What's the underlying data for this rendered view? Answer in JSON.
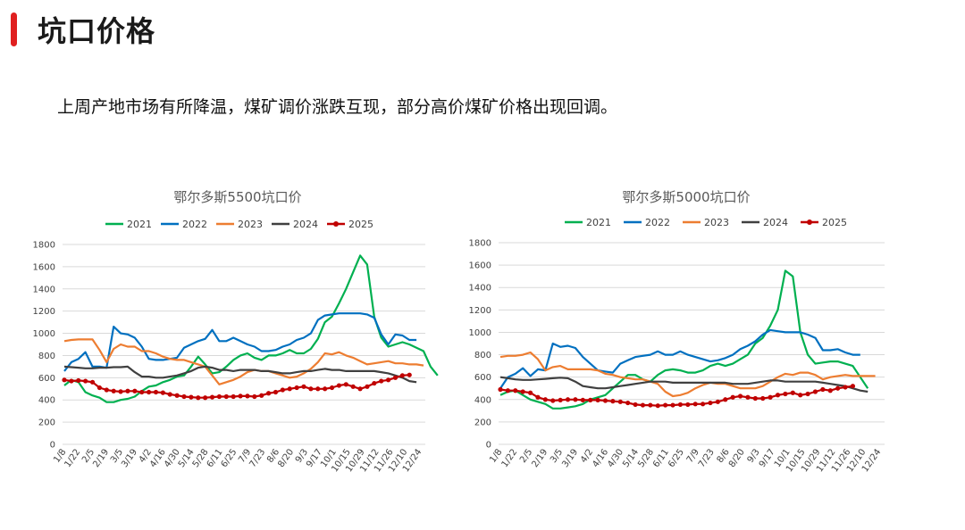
{
  "header": {
    "title": "坑口价格",
    "accent_color": "#e02020"
  },
  "subtitle": "上周产地市场有所降温，煤矿调价涨跌互现，部分高价煤矿价格出现回调。",
  "chart_data": [
    {
      "type": "line",
      "title": "鄂尔多斯5500坑口价",
      "xlabel": "",
      "ylabel": "",
      "ylim": [
        0,
        1800
      ],
      "yticks": [
        0,
        200,
        400,
        600,
        800,
        1000,
        1200,
        1400,
        1600,
        1800
      ],
      "x_labels": [
        "1/8",
        "1/22",
        "2/5",
        "2/19",
        "3/5",
        "3/19",
        "4/2",
        "4/16",
        "4/30",
        "5/14",
        "5/28",
        "6/11",
        "6/25",
        "7/9",
        "7/23",
        "8/6",
        "8/20",
        "9/3",
        "9/17",
        "10/1",
        "10/15",
        "10/29",
        "11/12",
        "11/26",
        "12/10",
        "12/24"
      ],
      "legend_position": "top",
      "series": [
        {
          "name": "2021",
          "color": "#00b050",
          "marker": false,
          "values": [
            530,
            580,
            560,
            470,
            440,
            420,
            380,
            380,
            400,
            410,
            430,
            480,
            520,
            530,
            560,
            580,
            610,
            620,
            700,
            790,
            720,
            640,
            650,
            700,
            760,
            800,
            820,
            780,
            760,
            800,
            800,
            820,
            850,
            820,
            820,
            860,
            950,
            1100,
            1150,
            1270,
            1400,
            1550,
            1700,
            1620,
            1150,
            960,
            880,
            900,
            920,
            900,
            870,
            840,
            700,
            620
          ]
        },
        {
          "name": "2022",
          "color": "#0070c0",
          "marker": false,
          "values": [
            660,
            740,
            770,
            830,
            700,
            700,
            690,
            1060,
            1000,
            990,
            960,
            880,
            770,
            760,
            760,
            770,
            780,
            870,
            900,
            930,
            950,
            1030,
            930,
            930,
            960,
            930,
            900,
            880,
            840,
            840,
            850,
            880,
            900,
            940,
            960,
            1000,
            1120,
            1160,
            1170,
            1180,
            1180,
            1180,
            1180,
            1170,
            1140,
            990,
            900,
            990,
            980,
            940,
            940
          ]
        },
        {
          "name": "2023",
          "color": "#ed7d31",
          "marker": false,
          "values": [
            930,
            940,
            945,
            945,
            945,
            850,
            740,
            860,
            900,
            880,
            880,
            840,
            840,
            820,
            790,
            770,
            760,
            760,
            740,
            720,
            700,
            620,
            540,
            560,
            580,
            610,
            650,
            670,
            660,
            660,
            640,
            620,
            600,
            610,
            640,
            680,
            740,
            820,
            810,
            830,
            800,
            780,
            750,
            720,
            730,
            740,
            750,
            730,
            730,
            720,
            720,
            710
          ]
        },
        {
          "name": "2024",
          "color": "#404040",
          "marker": false,
          "values": [
            700,
            695,
            690,
            685,
            685,
            690,
            690,
            695,
            695,
            700,
            650,
            610,
            610,
            600,
            600,
            610,
            620,
            640,
            660,
            690,
            700,
            690,
            670,
            670,
            660,
            670,
            670,
            670,
            660,
            660,
            650,
            640,
            640,
            650,
            660,
            660,
            670,
            680,
            670,
            670,
            660,
            660,
            660,
            660,
            660,
            650,
            640,
            620,
            600,
            570,
            560
          ]
        },
        {
          "name": "2025",
          "color": "#c00000",
          "marker": true,
          "values": [
            580,
            570,
            575,
            570,
            560,
            510,
            490,
            480,
            475,
            480,
            480,
            470,
            470,
            470,
            465,
            450,
            440,
            430,
            425,
            420,
            420,
            425,
            430,
            430,
            430,
            435,
            435,
            430,
            440,
            460,
            470,
            490,
            500,
            510,
            520,
            500,
            500,
            500,
            510,
            530,
            540,
            520,
            500,
            520,
            550,
            570,
            580,
            600,
            620,
            625
          ]
        }
      ]
    },
    {
      "type": "line",
      "title": "鄂尔多斯5000坑口价",
      "xlabel": "",
      "ylabel": "",
      "ylim": [
        0,
        1800
      ],
      "yticks": [
        0,
        200,
        400,
        600,
        800,
        1000,
        1200,
        1400,
        1600,
        1800
      ],
      "x_labels": [
        "1/8",
        "1/22",
        "2/5",
        "2/19",
        "3/5",
        "3/19",
        "4/2",
        "4/16",
        "4/30",
        "5/14",
        "5/28",
        "6/11",
        "6/25",
        "7/9",
        "7/23",
        "8/6",
        "8/20",
        "9/3",
        "9/17",
        "10/1",
        "10/15",
        "10/29",
        "11/12",
        "11/26",
        "12/10",
        "12/24"
      ],
      "legend_position": "top",
      "series": [
        {
          "name": "2021",
          "color": "#00b050",
          "marker": false,
          "values": [
            440,
            470,
            480,
            440,
            400,
            380,
            360,
            320,
            320,
            330,
            340,
            360,
            400,
            420,
            440,
            500,
            560,
            620,
            620,
            580,
            560,
            620,
            660,
            670,
            660,
            640,
            640,
            660,
            700,
            720,
            700,
            720,
            760,
            800,
            900,
            950,
            1060,
            1200,
            1550,
            1500,
            1000,
            800,
            720,
            730,
            740,
            740,
            720,
            700,
            600,
            500
          ]
        },
        {
          "name": "2022",
          "color": "#0070c0",
          "marker": false,
          "values": [
            500,
            600,
            630,
            680,
            610,
            670,
            660,
            900,
            870,
            880,
            860,
            780,
            720,
            660,
            650,
            640,
            720,
            750,
            780,
            790,
            800,
            830,
            800,
            800,
            830,
            800,
            780,
            760,
            740,
            750,
            770,
            800,
            850,
            880,
            920,
            980,
            1020,
            1010,
            1000,
            1000,
            1000,
            980,
            950,
            840,
            840,
            850,
            820,
            800,
            800
          ]
        },
        {
          "name": "2023",
          "color": "#ed7d31",
          "marker": false,
          "values": [
            780,
            790,
            790,
            800,
            820,
            760,
            660,
            690,
            700,
            670,
            670,
            670,
            670,
            660,
            630,
            620,
            600,
            590,
            580,
            580,
            560,
            540,
            470,
            430,
            440,
            460,
            500,
            530,
            550,
            540,
            540,
            520,
            500,
            500,
            500,
            520,
            560,
            600,
            630,
            620,
            640,
            640,
            620,
            580,
            600,
            610,
            620,
            610,
            610,
            610,
            610
          ]
        },
        {
          "name": "2024",
          "color": "#404040",
          "marker": false,
          "values": [
            600,
            590,
            580,
            575,
            575,
            580,
            585,
            590,
            595,
            590,
            560,
            520,
            510,
            500,
            500,
            510,
            520,
            530,
            540,
            550,
            560,
            560,
            560,
            550,
            550,
            550,
            550,
            550,
            550,
            550,
            550,
            540,
            540,
            540,
            550,
            560,
            570,
            570,
            560,
            560,
            560,
            560,
            560,
            550,
            540,
            530,
            520,
            500,
            480,
            470
          ]
        },
        {
          "name": "2025",
          "color": "#c00000",
          "marker": true,
          "values": [
            490,
            480,
            480,
            470,
            460,
            420,
            400,
            390,
            395,
            400,
            400,
            395,
            395,
            395,
            390,
            385,
            380,
            370,
            355,
            350,
            350,
            345,
            350,
            350,
            355,
            355,
            360,
            360,
            370,
            380,
            400,
            420,
            430,
            420,
            410,
            410,
            420,
            440,
            450,
            460,
            440,
            450,
            470,
            490,
            480,
            500,
            510,
            520
          ]
        }
      ]
    }
  ]
}
